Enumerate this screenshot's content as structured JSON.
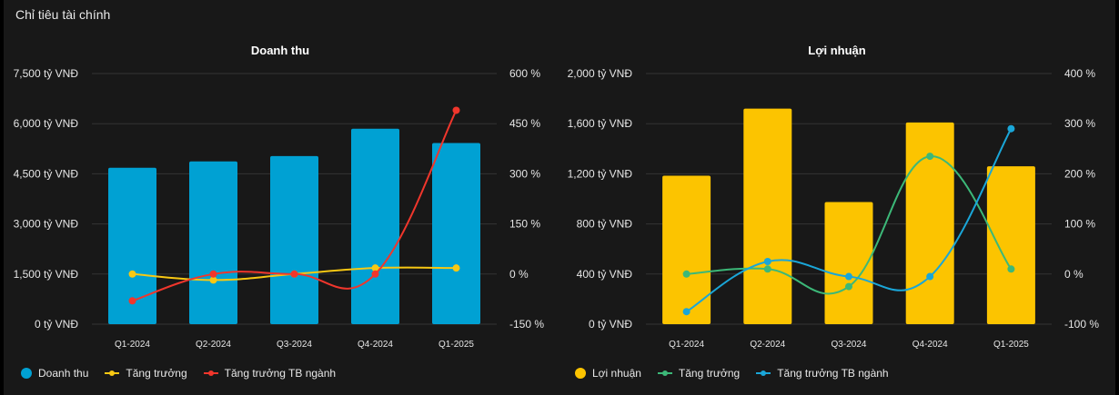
{
  "page": {
    "section_title": "Chỉ tiêu tài chính"
  },
  "chart_data": [
    {
      "type": "bar",
      "title": "Doanh thu",
      "categories": [
        "Q1-2024",
        "Q2-2024",
        "Q3-2024",
        "Q4-2024",
        "Q1-2025"
      ],
      "y_left": {
        "ticks": [
          0,
          1500,
          3000,
          4500,
          6000,
          7500
        ],
        "tick_labels": [
          "0 tỷ VNĐ",
          "1,500 tỷ VNĐ",
          "3,000 tỷ VNĐ",
          "4,500 tỷ VNĐ",
          "6,000 tỷ VNĐ",
          "7,500 tỷ VNĐ"
        ],
        "ylim": [
          0,
          7500
        ]
      },
      "y_right": {
        "ticks": [
          -150,
          0,
          150,
          300,
          450,
          600
        ],
        "tick_labels": [
          "-150 %",
          "0 %",
          "150 %",
          "300 %",
          "450 %",
          "600 %"
        ],
        "ylim": [
          -150,
          600
        ]
      },
      "grid": true,
      "legend_position": "bottom-left",
      "series": [
        {
          "name": "Doanh thu",
          "type": "bar",
          "axis": "left",
          "color": "#00a1d3",
          "values": [
            4680,
            4870,
            5030,
            5850,
            5420
          ]
        },
        {
          "name": "Tăng trưởng",
          "type": "line",
          "axis": "right",
          "color": "#f8c813",
          "values": [
            0,
            -18,
            0,
            18,
            18
          ]
        },
        {
          "name": "Tăng trưởng TB ngành",
          "type": "line",
          "axis": "right",
          "color": "#f0362c",
          "values": [
            -80,
            0,
            0,
            0,
            490
          ]
        }
      ]
    },
    {
      "type": "bar",
      "title": "Lợi nhuận",
      "categories": [
        "Q1-2024",
        "Q2-2024",
        "Q3-2024",
        "Q4-2024",
        "Q1-2025"
      ],
      "y_left": {
        "ticks": [
          0,
          400,
          800,
          1200,
          1600,
          2000
        ],
        "tick_labels": [
          "0 tỷ VNĐ",
          "400 tỷ VNĐ",
          "800 tỷ VNĐ",
          "1,200 tỷ VNĐ",
          "1,600 tỷ VNĐ",
          "2,000 tỷ VNĐ"
        ],
        "ylim": [
          0,
          2000
        ]
      },
      "y_right": {
        "ticks": [
          -100,
          0,
          100,
          200,
          300,
          400
        ],
        "tick_labels": [
          "-100 %",
          "0 %",
          "100 %",
          "200 %",
          "300 %",
          "400 %"
        ],
        "ylim": [
          -100,
          400
        ]
      },
      "grid": true,
      "legend_position": "bottom-left",
      "series": [
        {
          "name": "Lợi nhuận",
          "type": "bar",
          "axis": "left",
          "color": "#fcc400",
          "values": [
            1185,
            1720,
            975,
            1610,
            1260
          ]
        },
        {
          "name": "Tăng trưởng",
          "type": "line",
          "axis": "right",
          "color": "#3cb878",
          "values": [
            0,
            10,
            -25,
            235,
            10
          ]
        },
        {
          "name": "Tăng trưởng TB ngành",
          "type": "line",
          "axis": "right",
          "color": "#1aa6d8",
          "values": [
            -75,
            25,
            -5,
            -5,
            290
          ]
        }
      ]
    }
  ]
}
